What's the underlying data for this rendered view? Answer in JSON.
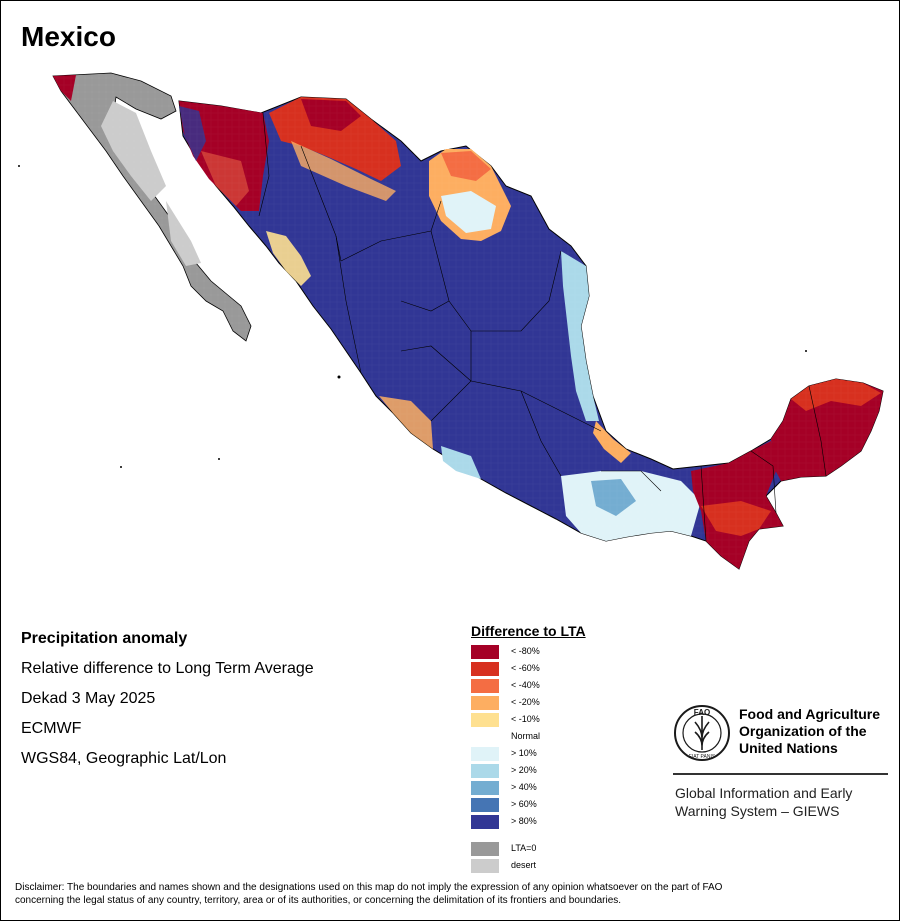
{
  "map": {
    "title": "Mexico",
    "info": {
      "line1": "Precipitation anomaly",
      "line2": "Relative difference to Long Term Average",
      "line3": "Dekad 3 May 2025",
      "line4": "ECMWF",
      "line5": "WGS84, Geographic Lat/Lon"
    }
  },
  "legend": {
    "title": "Difference to LTA",
    "items": [
      {
        "label": "< -80%",
        "color": "#a50026"
      },
      {
        "label": "< -60%",
        "color": "#d7301f"
      },
      {
        "label": "< -40%",
        "color": "#f46d43"
      },
      {
        "label": "< -20%",
        "color": "#fdae61"
      },
      {
        "label": "< -10%",
        "color": "#fee090"
      },
      {
        "label": "Normal",
        "color": "#ffffff"
      },
      {
        "label": "> 10%",
        "color": "#e0f3f8"
      },
      {
        "label": "> 20%",
        "color": "#abd9e9"
      },
      {
        "label": "> 40%",
        "color": "#74add1"
      },
      {
        "label": "> 60%",
        "color": "#4575b4"
      },
      {
        "label": "> 80%",
        "color": "#313695"
      }
    ],
    "extra": [
      {
        "label": "LTA=0",
        "color": "#999999"
      },
      {
        "label": "desert",
        "color": "#cccccc"
      }
    ]
  },
  "org": {
    "name_line1": "Food and Agriculture",
    "name_line2": "Organization of the",
    "name_line3": "United Nations",
    "logo_text": "FAO",
    "logo_motto": "FIAT PANIS",
    "system_line1": "Global Information and Early",
    "system_line2": "Warning System – GIEWS"
  },
  "disclaimer": {
    "line1": "Disclaimer: The boundaries and names shown and the designations used on this map do not imply the expression of any opinion whatsoever on the part of FAO",
    "line2": "concerning the legal status of any country, territory, area or of its authorities, or concerning the delimitation of its frontiers and boundaries."
  }
}
